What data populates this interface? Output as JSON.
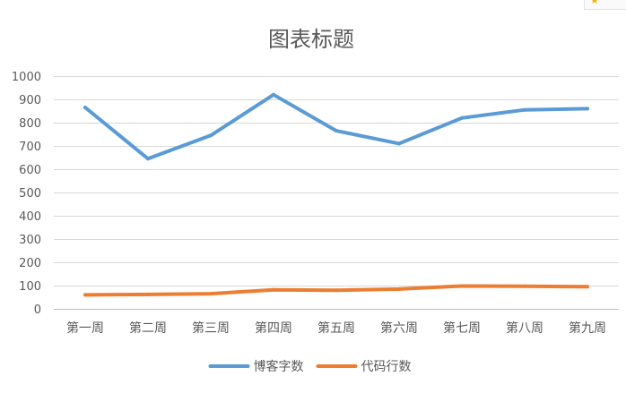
{
  "chart_data": {
    "type": "line",
    "title": "图表标题",
    "categories": [
      "第一周",
      "第二周",
      "第三周",
      "第四周",
      "第五周",
      "第六周",
      "第七周",
      "第八周",
      "第九周"
    ],
    "series": [
      {
        "name": "博客字数",
        "color": "#5b9bd5",
        "values": [
          865,
          645,
          745,
          920,
          765,
          710,
          820,
          855,
          860
        ]
      },
      {
        "name": "代码行数",
        "color": "#ed7d31",
        "values": [
          60,
          62,
          65,
          82,
          80,
          85,
          98,
          97,
          95
        ]
      }
    ],
    "ylim": [
      0,
      1000
    ],
    "yticks": [
      0,
      100,
      200,
      300,
      400,
      500,
      600,
      700,
      800,
      900,
      1000
    ],
    "grid": true,
    "legend": "bottom"
  }
}
